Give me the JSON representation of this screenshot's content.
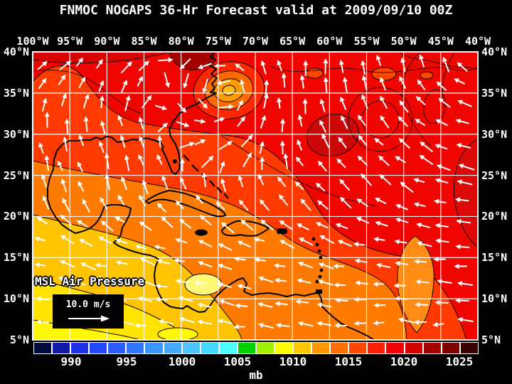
{
  "title": "FNMOC NOGAPS 36-Hr Forecast valid at 2009/09/10 00Z",
  "map": {
    "longitude_labels": [
      "100°W",
      "95°W",
      "90°W",
      "85°W",
      "80°W",
      "75°W",
      "70°W",
      "65°W",
      "60°W",
      "55°W",
      "50°W",
      "45°W",
      "40°W"
    ],
    "latitude_labels": [
      "40°N",
      "35°N",
      "30°N",
      "25°N",
      "20°N",
      "15°N",
      "10°N",
      "5°N"
    ],
    "field_label": "MSL Air Pressure",
    "wind_scale_label": "10.0 m/s",
    "wind_scale_icon": "right-arrow-icon"
  },
  "colorbar": {
    "tick_labels": [
      "990",
      "995",
      "1000",
      "1005",
      "1010",
      "1015",
      "1020",
      "1025"
    ],
    "unit_label": "mb",
    "segment_colors": [
      "#000A3C",
      "#121AA5",
      "#1C34E6",
      "#2448FF",
      "#2A5CFF",
      "#2E78FF",
      "#3C96FF",
      "#46AAFF",
      "#50C3FF",
      "#46D7FF",
      "#50FFFF",
      "#00D200",
      "#A0F000",
      "#FFFF00",
      "#FFC800",
      "#FF9600",
      "#FF6E00",
      "#FF4600",
      "#FF1E00",
      "#F00000",
      "#D20000",
      "#A50000",
      "#7D0000",
      "#380000"
    ]
  },
  "colors": {
    "background": "#000000",
    "text": "#FFFFFF",
    "grid_lines": "#FFFFFF",
    "coastline": "#000000",
    "wind_arrows": "#FFFFFF",
    "field_red": "#F10500",
    "field_red_orange": "#FF3A00",
    "field_orange": "#FF7A00",
    "field_gold": "#FFC400",
    "field_yellow": "#FFE400",
    "cyclone_core": "#FFBE14"
  }
}
